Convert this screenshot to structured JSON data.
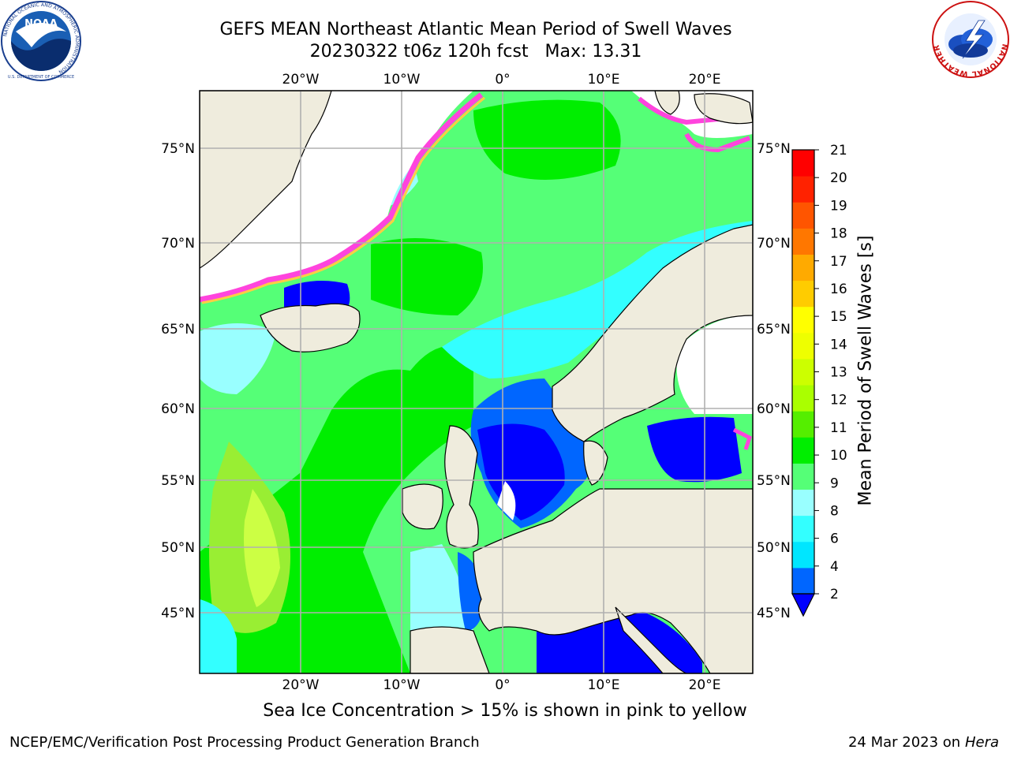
{
  "header": {
    "title_line1": "GEFS MEAN Northeast Atlantic Mean Period of Swell Waves",
    "title_line2": "20230322 t06z 120h fcst   Max: 13.31"
  },
  "logos": {
    "noaa": {
      "name": "NOAA",
      "ring_text": "NATIONAL OCEANIC AND ATMOSPHERIC ADMINISTRATION",
      "lower_text": "U.S. DEPARTMENT OF COMMERCE"
    },
    "nws": {
      "ring_text": "NATIONAL WEATHER SERVICE"
    }
  },
  "map": {
    "lon_ticks": [
      "20°W",
      "10°W",
      "0°",
      "10°E",
      "20°E"
    ],
    "lat_ticks": [
      "75°N",
      "70°N",
      "65°N",
      "60°N",
      "55°N",
      "50°N",
      "45°N"
    ],
    "colors": {
      "land": "#efecdd",
      "ice_free_white": "#ffffff",
      "grid": "#b0b0b0",
      "coast": "#000000",
      "ice_pink": "#ff44dd",
      "ice_yellow": "#ffcc44"
    }
  },
  "colorbar": {
    "label": "Mean Period of Swell Waves [s]",
    "ticks": [
      "21",
      "20",
      "19",
      "18",
      "17",
      "16",
      "15",
      "14",
      "13",
      "12",
      "11",
      "10",
      "9",
      "8",
      "6",
      "4",
      "2"
    ],
    "under_color": "#0000ff",
    "colors_bottom_to_top": [
      "#0066ff",
      "#00e6ff",
      "#33ffff",
      "#99ffff",
      "#55ff77",
      "#00ee00",
      "#55ee00",
      "#aaff00",
      "#ccff00",
      "#eeff00",
      "#ffff00",
      "#ffcc00",
      "#ffaa00",
      "#ff7700",
      "#ff5500",
      "#ff2200",
      "#ff0000"
    ]
  },
  "notes": {
    "ice": "Sea Ice Concentration > 15% is shown in pink to yellow"
  },
  "footer": {
    "left": "NCEP/EMC/Verification Post Processing Product Generation Branch",
    "date": "24 Mar 2023 on",
    "host": "Hera"
  }
}
